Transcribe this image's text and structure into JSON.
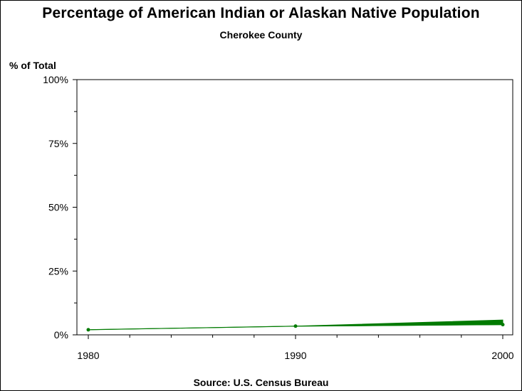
{
  "chart_data": {
    "type": "area",
    "title": "Percentage of American Indian or Alaskan Native Population",
    "subtitle": "Cherokee County",
    "ylabel": "% of Total",
    "source": "Source: U.S. Census Bureau",
    "x": [
      1980,
      1990,
      2000
    ],
    "xlim": [
      1980,
      2000
    ],
    "ylim": [
      0,
      100
    ],
    "x_ticks": [
      "1980",
      "1990",
      "2000"
    ],
    "y_ticks": [
      "0%",
      "25%",
      "50%",
      "75%",
      "100%"
    ],
    "series": [
      {
        "values": [
          2.0,
          3.4,
          4.0
        ],
        "upper": [
          2.0,
          3.4,
          5.8
        ]
      }
    ],
    "color": "#007a00",
    "grid": false,
    "legend": "none"
  }
}
